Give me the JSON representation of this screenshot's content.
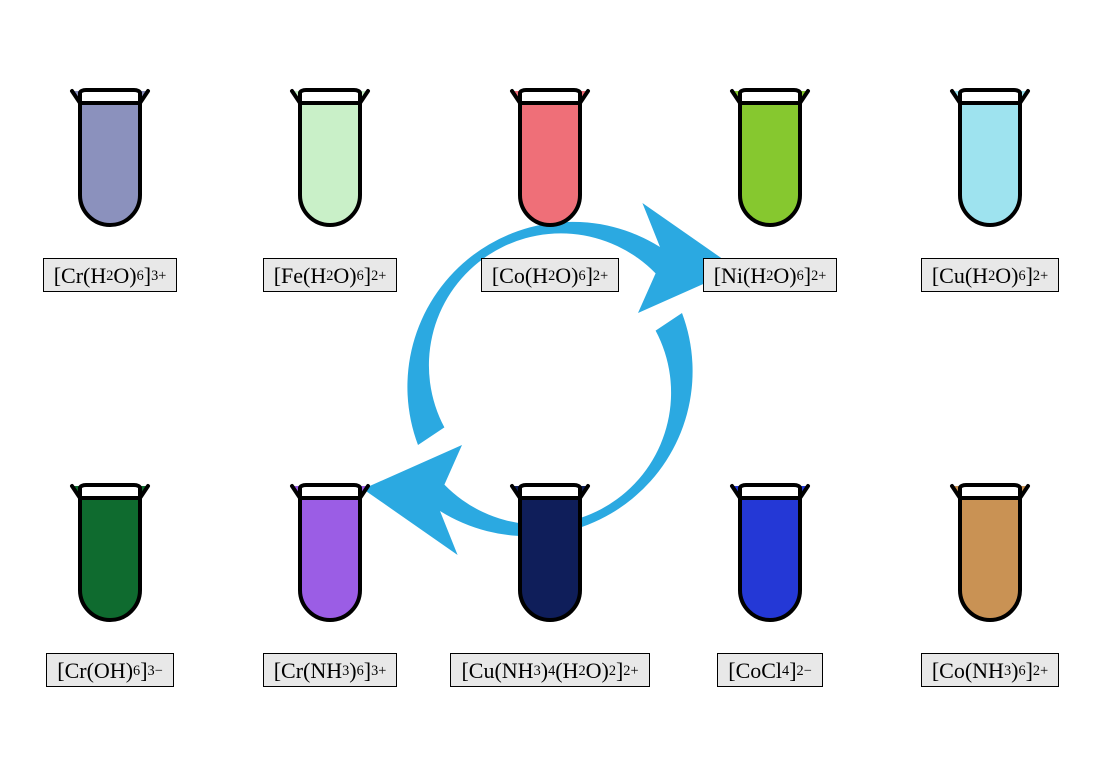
{
  "diagram": {
    "type": "infographic",
    "background_color": "#ffffff",
    "arrow_color": "#2ba9e1",
    "tube_outline": "#000000",
    "tube_outline_width": 4,
    "tube_inner_fill": "#ffffff",
    "label_box_bg": "#e8e8e8",
    "label_box_border": "#000000",
    "label_font_family": "Comic Sans MS",
    "label_font_size": 22,
    "sup_sub_scale": 0.65,
    "rows": [
      {
        "position": "top",
        "items": [
          {
            "id": "cr-h2o",
            "fill": "#8b91bd",
            "formula_html": "[Cr(H<sub>2</sub>O)<sub>6</sub>]<sup>3+</sup>"
          },
          {
            "id": "fe-h2o",
            "fill": "#c9f0c8",
            "formula_html": "[Fe(H<sub>2</sub>O)<sub>6</sub>]<sup>2+</sup>"
          },
          {
            "id": "co-h2o",
            "fill": "#ef6f78",
            "formula_html": "[Co(H<sub>2</sub>O)<sub>6</sub>]<sup>2+</sup>"
          },
          {
            "id": "ni-h2o",
            "fill": "#86c82f",
            "formula_html": "[Ni(H<sub>2</sub>O)<sub>6</sub>]<sup>2+</sup>"
          },
          {
            "id": "cu-h2o",
            "fill": "#9ee3ef",
            "formula_html": "[Cu(H<sub>2</sub>O)<sub>6</sub>]<sup>2+</sup>"
          }
        ]
      },
      {
        "position": "bottom",
        "items": [
          {
            "id": "cr-oh",
            "fill": "#0f6b2f",
            "formula_html": "[Cr(OH)<sub>6</sub>]<sup>3−</sup>"
          },
          {
            "id": "cr-nh3",
            "fill": "#9b5de5",
            "formula_html": "[Cr(NH<sub>3</sub>)<sub>6</sub>]<sup>3+</sup>"
          },
          {
            "id": "cu-nh3",
            "fill": "#0f1e5a",
            "formula_html": "[Cu(NH<sub>3</sub>)<sub>4</sub>(H<sub>2</sub>O)<sub>2</sub>]<sup>2+</sup>"
          },
          {
            "id": "co-cl",
            "fill": "#2438d6",
            "formula_html": "[CoCl<sub>4</sub>]<sup>2−</sup>"
          },
          {
            "id": "co-nh3",
            "fill": "#c99254",
            "formula_html": "[Co(NH<sub>3</sub>)<sub>6</sub>]<sup>2+</sup>"
          }
        ]
      }
    ]
  }
}
